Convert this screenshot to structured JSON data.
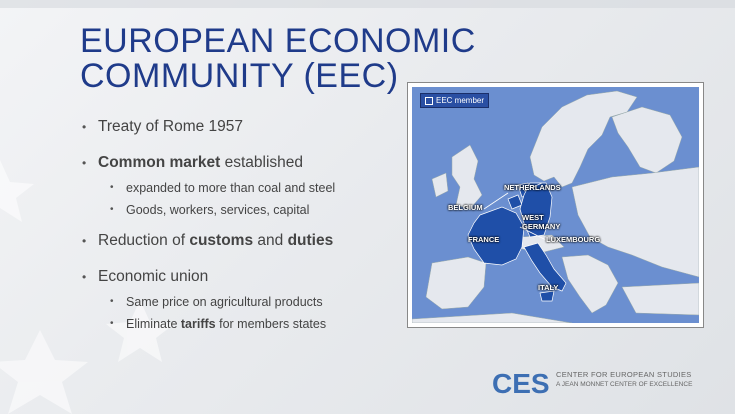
{
  "slide": {
    "title_line1": "EUROPEAN ECONOMIC",
    "title_line2": "COMMUNITY (EEC)"
  },
  "bullets": {
    "b1": "Treaty of Rome 1957",
    "b2_bold": "Common market",
    "b2_rest": " established",
    "b2_sub1": "expanded to more than coal and steel",
    "b2_sub2": "Goods, workers, services, capital",
    "b3_pre": "Reduction of ",
    "b3_bold1": "customs",
    "b3_mid": " and ",
    "b3_bold2": "duties",
    "b4": "Economic union",
    "b4_sub1": "Same price on agricultural products",
    "b4_sub2_pre": "Eliminate ",
    "b4_sub2_bold": "tariffs",
    "b4_sub2_rest": " for members states"
  },
  "map": {
    "legend": "EEC member",
    "labels": {
      "netherlands": "NETHERLANDS",
      "belgium": "BELGIUM",
      "west_germany_1": "WEST",
      "west_germany_2": "GERMANY",
      "france": "FRANCE",
      "luxembourg": "LUXEMBOURG",
      "italy": "ITALY"
    },
    "colors": {
      "sea": "#6b8fd0",
      "land": "#e5e8ee",
      "member": "#1f4fa8"
    }
  },
  "logo": {
    "mark": "CES",
    "line1": "CENTER FOR EUROPEAN STUDIES",
    "line2": "A JEAN MONNET CENTER OF EXCELLENCE"
  }
}
